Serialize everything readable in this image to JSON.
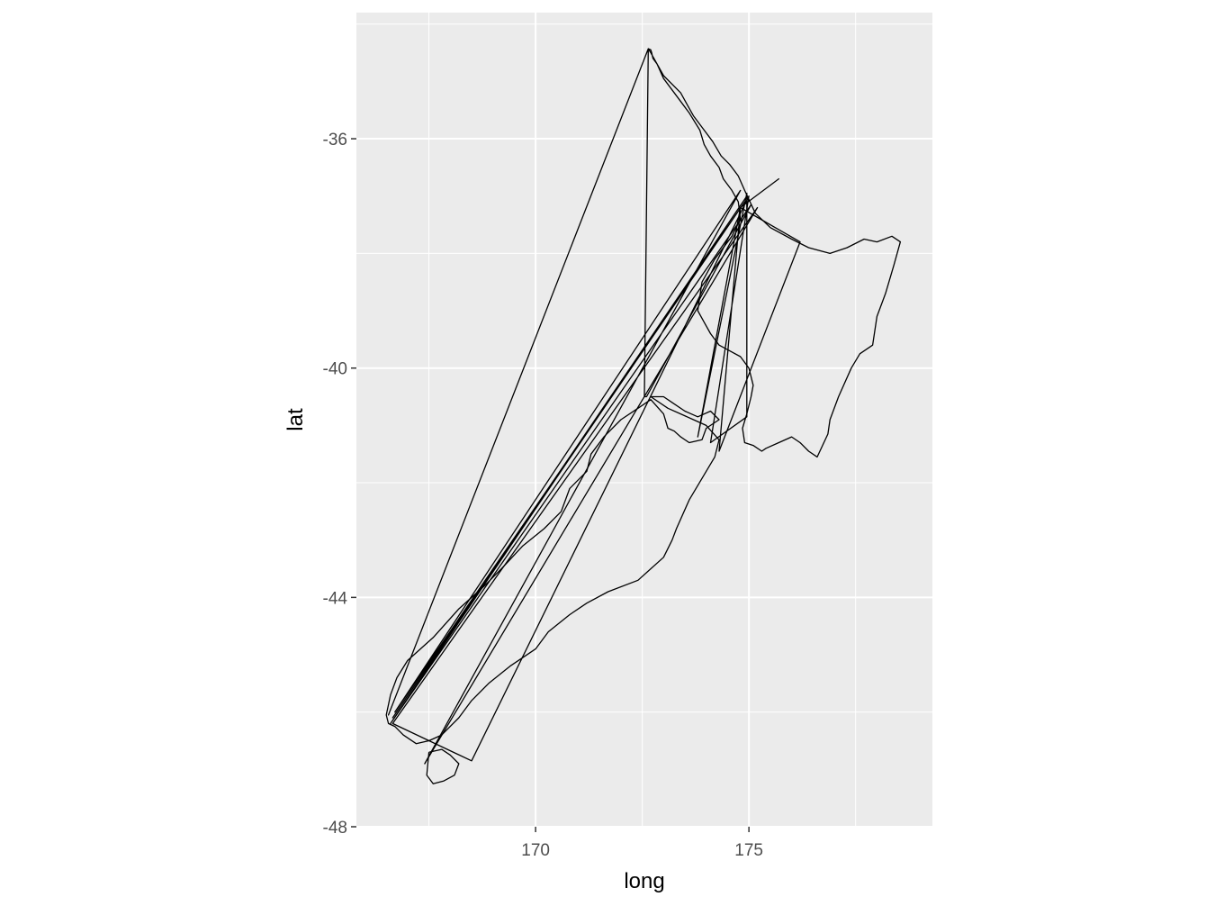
{
  "chart_data": {
    "type": "line",
    "title": "",
    "xlabel": "long",
    "ylabel": "lat",
    "xlim": [
      165.8,
      179.3
    ],
    "ylim": [
      -48.0,
      -33.8
    ],
    "x_ticks": [
      170,
      175
    ],
    "x_tick_labels": [
      "170",
      "175"
    ],
    "y_ticks": [
      -36,
      -40,
      -44,
      -48
    ],
    "y_tick_labels": [
      "-36",
      "-40",
      "-44",
      "-48"
    ],
    "grid": true,
    "legend": "none",
    "colors": {
      "panel": "#ebebeb",
      "grid": "#ffffff",
      "line": "#000000",
      "land": "#ffffff"
    },
    "series": [
      {
        "x": [
          172.64,
          172.7,
          173.0,
          173.4,
          173.55,
          173.7,
          173.95,
          174.15,
          174.35,
          174.55,
          174.75,
          174.9,
          175.15,
          175.5,
          176.0,
          176.4,
          176.9,
          177.3,
          177.7,
          178.0,
          178.35,
          178.55,
          178.4,
          178.2,
          178.0,
          177.9,
          177.6,
          177.4,
          177.1,
          176.9,
          176.85,
          176.6,
          176.4,
          176.2,
          176.0,
          175.7,
          175.4,
          175.3,
          175.1,
          174.9,
          174.85,
          174.95,
          175.05,
          175.1,
          175.0,
          174.8,
          174.55,
          174.3,
          174.1,
          173.95,
          173.8,
          173.9,
          174.2,
          174.6,
          174.8,
          174.75,
          174.6,
          174.4,
          174.3,
          174.1,
          173.95,
          173.85,
          173.6,
          173.3,
          173.0,
          172.85,
          172.75,
          172.72,
          172.7,
          172.64
        ],
        "y": [
          -34.43,
          -34.5,
          -34.9,
          -35.2,
          -35.4,
          -35.6,
          -35.85,
          -36.05,
          -36.3,
          -36.45,
          -36.65,
          -36.9,
          -37.3,
          -37.55,
          -37.75,
          -37.9,
          -38.0,
          -37.9,
          -37.75,
          -37.8,
          -37.7,
          -37.8,
          -38.2,
          -38.7,
          -39.1,
          -39.6,
          -39.75,
          -40.0,
          -40.5,
          -40.9,
          -41.15,
          -41.55,
          -41.45,
          -41.3,
          -41.2,
          -41.3,
          -41.4,
          -41.45,
          -41.35,
          -41.3,
          -41.05,
          -40.8,
          -40.5,
          -40.3,
          -40.0,
          -39.8,
          -39.7,
          -39.6,
          -39.4,
          -39.2,
          -39.0,
          -38.5,
          -38.1,
          -37.7,
          -37.4,
          -37.1,
          -36.9,
          -36.7,
          -36.5,
          -36.3,
          -36.1,
          -35.85,
          -35.55,
          -35.25,
          -34.95,
          -34.7,
          -34.6,
          -34.5,
          -34.45,
          -34.43
        ]
      },
      {
        "x": [
          172.7,
          173.1,
          173.7,
          174.0,
          174.3,
          174.2,
          174.0,
          173.6,
          173.3,
          173.2,
          173.0,
          172.4,
          171.7,
          171.2,
          170.8,
          170.3,
          170.0,
          169.4,
          168.9,
          168.5,
          168.2,
          167.8,
          167.5,
          167.2,
          166.9,
          166.7,
          166.55,
          166.5,
          166.6,
          166.75,
          167.0,
          167.6,
          168.2,
          168.8,
          169.2,
          169.7,
          170.2,
          170.6,
          170.8,
          171.2,
          171.3,
          171.6,
          172.0,
          172.4,
          172.7,
          173.0,
          173.1,
          173.25,
          173.4,
          173.6,
          173.9,
          174.0,
          174.3,
          174.1,
          173.8,
          173.5,
          173.2,
          173.0,
          172.7
        ],
        "y": [
          -40.5,
          -40.7,
          -40.9,
          -41.0,
          -41.25,
          -41.55,
          -41.8,
          -42.3,
          -42.8,
          -43.0,
          -43.3,
          -43.7,
          -43.9,
          -44.1,
          -44.3,
          -44.6,
          -44.9,
          -45.2,
          -45.5,
          -45.8,
          -46.1,
          -46.4,
          -46.5,
          -46.55,
          -46.4,
          -46.25,
          -46.2,
          -46.05,
          -45.7,
          -45.4,
          -45.1,
          -44.7,
          -44.2,
          -43.8,
          -43.5,
          -43.1,
          -42.8,
          -42.5,
          -42.1,
          -41.8,
          -41.5,
          -41.2,
          -40.9,
          -40.7,
          -40.55,
          -40.8,
          -41.05,
          -41.1,
          -41.2,
          -41.3,
          -41.25,
          -41.05,
          -40.9,
          -40.75,
          -40.85,
          -40.75,
          -40.6,
          -40.5,
          -40.5
        ]
      },
      {
        "x": [
          167.5,
          167.8,
          168.0,
          168.2,
          168.1,
          167.85,
          167.6,
          167.45,
          167.5
        ],
        "y": [
          -46.7,
          -46.65,
          -46.75,
          -46.9,
          -47.1,
          -47.2,
          -47.25,
          -47.1,
          -46.7
        ]
      },
      {
        "x": [
          172.64,
          166.55,
          172.64,
          172.55,
          172.6,
          175.05,
          166.6,
          174.95,
          166.65,
          174.9,
          166.7,
          174.8,
          167.4,
          175.2,
          166.65,
          168.5,
          175.0,
          174.1,
          174.95,
          174.95,
          173.8,
          174.8,
          175.7,
          174.8,
          176.2,
          174.3,
          174.8
        ],
        "y": [
          -34.43,
          -46.05,
          -34.43,
          -40.5,
          -40.5,
          -37.15,
          -46.2,
          -37.0,
          -46.1,
          -37.1,
          -46.0,
          -36.9,
          -46.9,
          -37.2,
          -46.2,
          -46.85,
          -37.0,
          -41.3,
          -40.85,
          -36.95,
          -41.2,
          -37.2,
          -36.7,
          -37.2,
          -37.8,
          -41.45,
          -37.2
        ]
      }
    ]
  }
}
